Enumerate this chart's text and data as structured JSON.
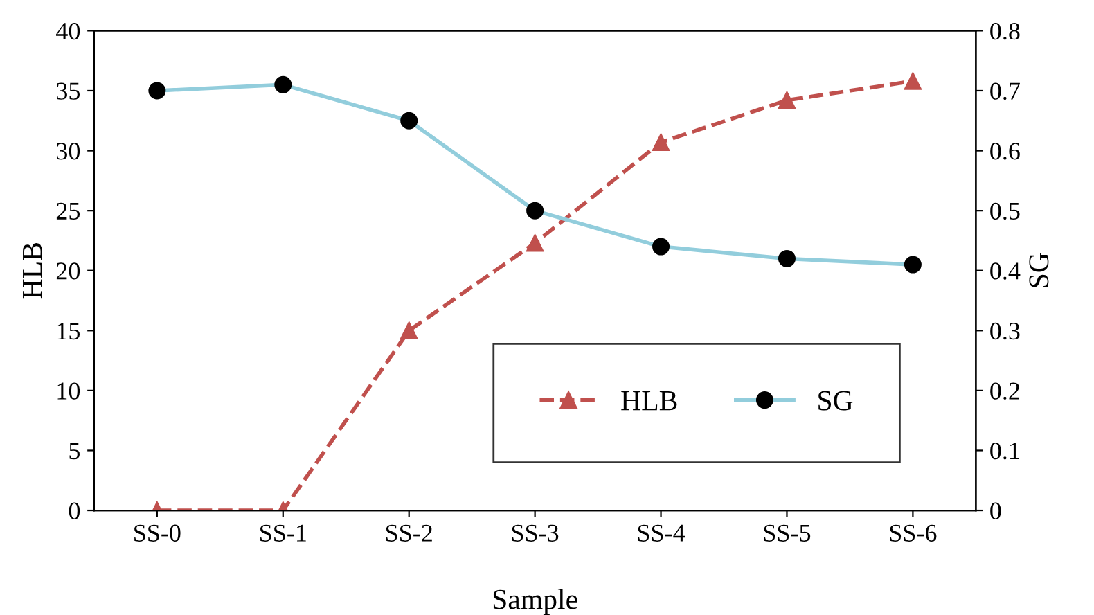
{
  "chart_data": {
    "type": "line",
    "xlabel": "Sample",
    "ylabel": "HLB",
    "y2label": "SG",
    "categories": [
      "SS-0",
      "SS-1",
      "SS-2",
      "SS-3",
      "SS-4",
      "SS-5",
      "SS-6"
    ],
    "series": [
      {
        "name": "HLB",
        "color": "#c0504d",
        "values": [
          0,
          0,
          15,
          22.3,
          30.7,
          34.2,
          35.8
        ],
        "marker": "triangle",
        "line_style": "dashed"
      },
      {
        "name": "SG",
        "color": "#92cddc",
        "values": [
          0.7,
          0.71,
          0.65,
          0.5,
          0.44,
          0.42,
          0.41
        ],
        "marker": "circle",
        "line_style": "solid",
        "axis": "y2"
      }
    ],
    "ylim": [
      0,
      40
    ],
    "yticks": [
      0,
      5,
      10,
      15,
      20,
      25,
      30,
      35,
      40
    ],
    "y2lim": [
      0,
      0.8
    ],
    "y2ticks": [
      0,
      0.1,
      0.2,
      0.3,
      0.4,
      0.5,
      0.6,
      0.7,
      0.8
    ],
    "grid": false,
    "legend": "bottom right"
  }
}
